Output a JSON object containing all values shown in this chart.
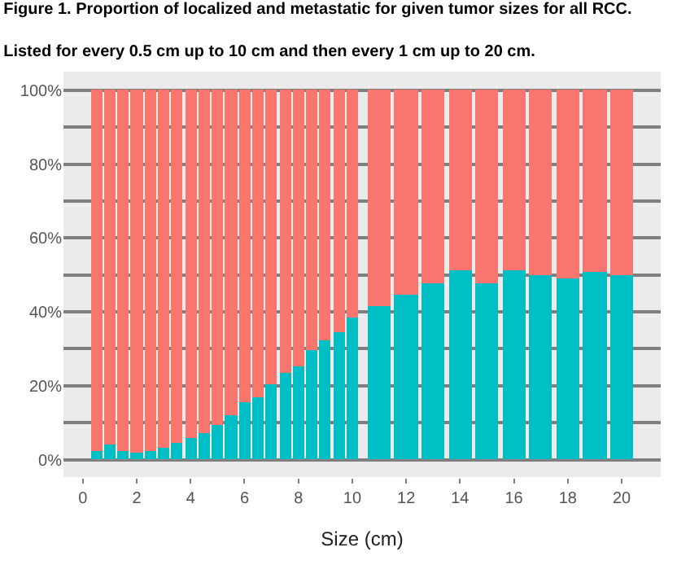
{
  "chart_data": {
    "type": "bar",
    "stacked": true,
    "title": "Figure 1. Proportion of localized and metastatic for given tumor sizes for all RCC.",
    "subtitle": "Listed for every 0.5 cm up to 10 cm and then every 1 cm up to 20 cm.",
    "xlabel": "Size (cm)",
    "x": [
      0.5,
      1,
      1.5,
      2,
      2.5,
      3,
      3.5,
      4,
      4.5,
      5,
      5.5,
      6,
      6.5,
      7,
      7.5,
      8,
      8.5,
      9,
      9.5,
      10,
      11,
      12,
      13,
      14,
      15,
      16,
      17,
      18,
      19,
      20
    ],
    "series": [
      {
        "color": "#00bfc4",
        "values": [
          2.5,
          4,
          2.5,
          1.8,
          2.5,
          3.2,
          4.4,
          5.8,
          7.3,
          9.6,
          12.2,
          15.7,
          17,
          20.6,
          23.5,
          25.3,
          29.5,
          32.3,
          34.5,
          38.4,
          41.6,
          44.6,
          47.9,
          51.2,
          47.9,
          51.2,
          49.9,
          48.9,
          51,
          50.1
        ]
      },
      {
        "color": "#f8766d",
        "values": [
          97.5,
          96,
          97.5,
          98.2,
          97.5,
          96.8,
          95.6,
          94.2,
          92.7,
          90.4,
          87.8,
          84.3,
          83,
          79.4,
          76.5,
          74.7,
          70.5,
          67.7,
          65.5,
          61.6,
          58.4,
          55.4,
          52.1,
          48.8,
          52.1,
          48.8,
          50.1,
          51.1,
          49,
          49.9
        ]
      }
    ],
    "xlim": [
      -0.72,
      21.45
    ],
    "xticks": [
      0,
      2,
      4,
      6,
      8,
      10,
      12,
      14,
      16,
      18,
      20
    ],
    "ylim": [
      -4.7,
      105
    ],
    "yticks": [
      {
        "value": 0,
        "label": "0%"
      },
      {
        "value": 10,
        "label": null
      },
      {
        "value": 20,
        "label": "20%"
      },
      {
        "value": 30,
        "label": null
      },
      {
        "value": 40,
        "label": "40%"
      },
      {
        "value": 50,
        "label": null
      },
      {
        "value": 60,
        "label": "60%"
      },
      {
        "value": 70,
        "label": null
      },
      {
        "value": 80,
        "label": "80%"
      },
      {
        "value": 90,
        "label": null
      },
      {
        "value": 100,
        "label": "100%"
      }
    ],
    "grid": "y"
  }
}
